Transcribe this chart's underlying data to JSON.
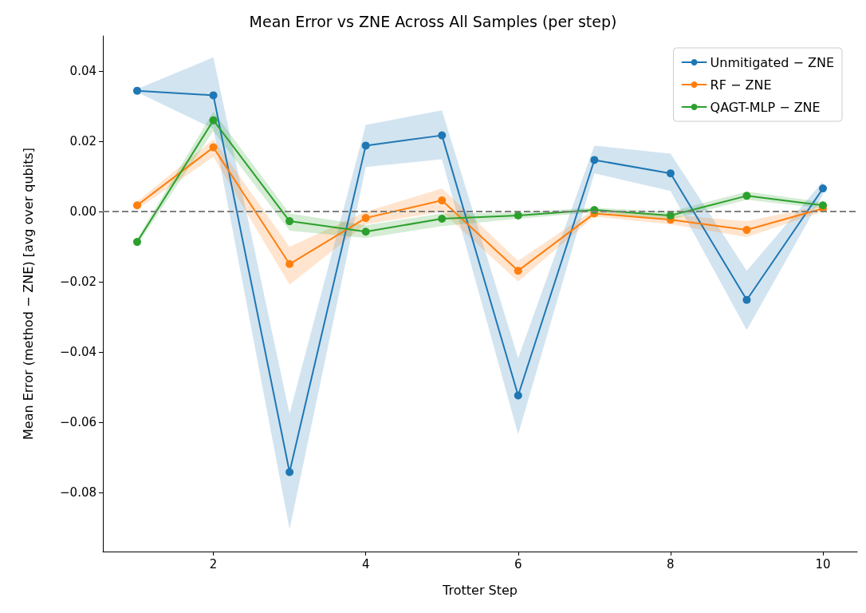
{
  "chart_data": {
    "type": "line",
    "title": "Mean Error vs ZNE Across All Samples (per step)",
    "xlabel": "Trotter Step",
    "ylabel": "Mean Error (method − ZNE) [avg over qubits]",
    "x": [
      1,
      2,
      3,
      4,
      5,
      6,
      7,
      8,
      9,
      10
    ],
    "series": [
      {
        "name": "Unmitigated − ZNE",
        "color": "#1f77b4",
        "values": [
          0.0344,
          0.0331,
          -0.0741,
          0.0188,
          0.0217,
          -0.0523,
          0.0147,
          0.0109,
          -0.0251,
          0.0066
        ],
        "upper": [
          0.0349,
          0.0439,
          -0.0575,
          0.0247,
          0.0288,
          -0.0417,
          0.0188,
          0.0165,
          -0.0168,
          0.0086
        ],
        "lower": [
          0.034,
          0.0236,
          -0.0904,
          0.0127,
          0.0149,
          -0.0634,
          0.0109,
          0.0059,
          -0.0337,
          0.0048
        ]
      },
      {
        "name": "RF − ZNE",
        "color": "#ff7f0e",
        "values": [
          0.0018,
          0.0183,
          -0.0149,
          -0.0018,
          0.0032,
          -0.0168,
          -0.0005,
          -0.0023,
          -0.0052,
          0.0009
        ],
        "upper": [
          0.0029,
          0.0206,
          -0.01,
          0.0,
          0.0066,
          -0.014,
          0.0007,
          -0.0009,
          -0.0027,
          0.0018
        ],
        "lower": [
          0.0007,
          0.0156,
          -0.0208,
          -0.0036,
          0.0,
          -0.0199,
          -0.0014,
          -0.0036,
          -0.0072,
          0.0
        ]
      },
      {
        "name": "QAGT-MLP − ZNE",
        "color": "#2ca02c",
        "values": [
          -0.0086,
          0.026,
          -0.0027,
          -0.0057,
          -0.002,
          -0.0011,
          0.0005,
          -0.0011,
          0.0045,
          0.0018
        ],
        "upper": [
          -0.0077,
          0.0285,
          -0.0005,
          -0.0039,
          -0.0005,
          -0.0002,
          0.0011,
          0.0,
          0.0057,
          0.0027
        ],
        "lower": [
          -0.0095,
          0.0229,
          -0.0054,
          -0.0075,
          -0.0041,
          -0.002,
          -0.0002,
          -0.0023,
          0.0034,
          0.0009
        ]
      }
    ],
    "xlim": [
      0.55,
      10.45
    ],
    "xticks": [
      2,
      4,
      6,
      8,
      10
    ],
    "ylim": [
      -0.0967,
      0.05
    ],
    "yticks": [
      {
        "value": -0.08,
        "label": "−0.08"
      },
      {
        "value": -0.06,
        "label": "−0.06"
      },
      {
        "value": -0.04,
        "label": "−0.04"
      },
      {
        "value": -0.02,
        "label": "−0.02"
      },
      {
        "value": 0,
        "label": "0.00"
      },
      {
        "value": 0.02,
        "label": "0.02"
      },
      {
        "value": 0.04,
        "label": "0.04"
      }
    ],
    "ref_lines": [
      {
        "axis": "y",
        "value": 0,
        "label": null,
        "color": "#808080",
        "line_style": "dashed"
      }
    ],
    "grid": false,
    "legend": "top right",
    "marker": "circle",
    "line_style": "solid"
  }
}
